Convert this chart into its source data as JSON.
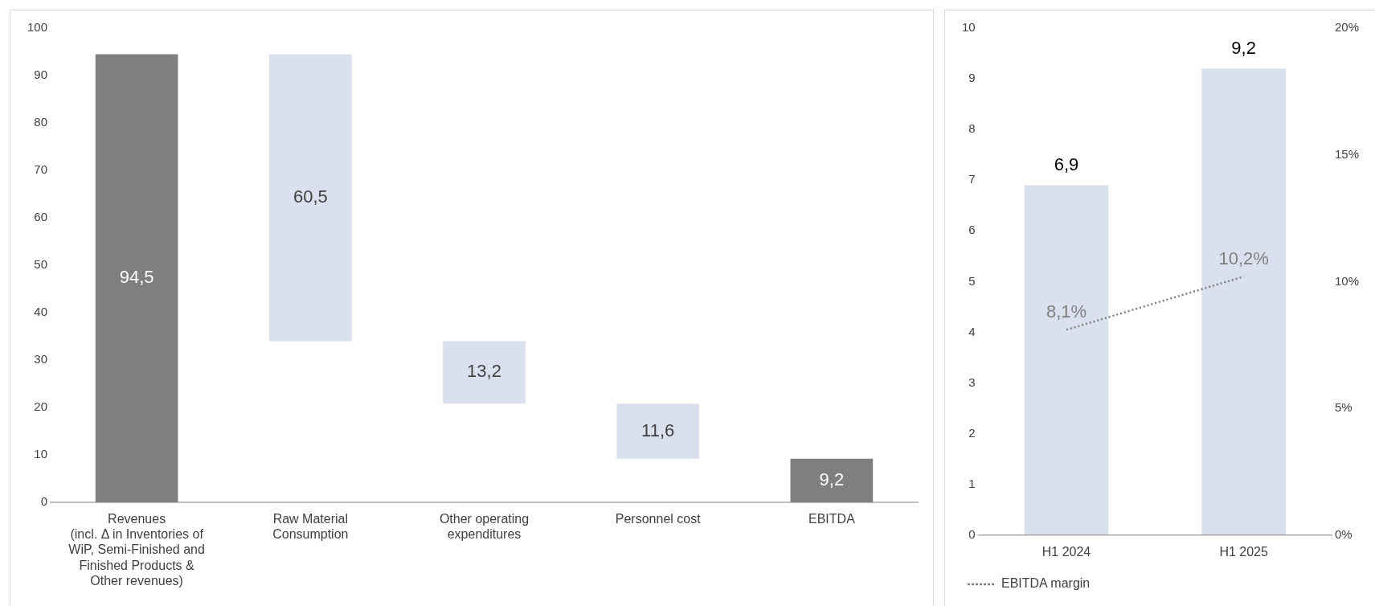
{
  "chart_data": [
    {
      "type": "bar",
      "categories": [
        "Revenues\n(incl. Δ in Inventories of\nWiP, Semi-Finished and\nFinished Products &\nOther revenues)",
        "Raw Material\nConsumption",
        "Other operating\nexpenditures",
        "Personnel cost",
        "EBITDA"
      ],
      "values": [
        94.5,
        60.5,
        13.2,
        11.6,
        9.2
      ],
      "base": [
        0,
        34,
        20.8,
        9.2,
        0
      ],
      "colors": [
        "#7f7f7f",
        "#dae0ee",
        "#dae0ee",
        "#dae0ee",
        "#7f7f7f"
      ],
      "value_labels": [
        "94,5",
        "60,5",
        "13,2",
        "11,6",
        "9,2"
      ],
      "ylim": [
        0,
        100
      ],
      "yticks": [
        0,
        10,
        20,
        30,
        40,
        50,
        60,
        70,
        80,
        90,
        100
      ],
      "grid": false,
      "legend": false
    },
    {
      "type": "bar",
      "categories": [
        "H1 2024",
        "H1 2025"
      ],
      "series": [
        {
          "color": "#dae0ee",
          "values": [
            6.9,
            9.2
          ],
          "value_labels": [
            "6,9",
            "9,2"
          ]
        },
        {
          "type": "line",
          "name": "EBITDA margin",
          "axis": "y2",
          "color": "#7f7f7f",
          "line_style": "dotted",
          "marker": "none",
          "values": [
            8.1,
            10.2
          ],
          "value_labels": [
            "8,1%",
            "10,2%"
          ]
        }
      ],
      "ylim": [
        0,
        10
      ],
      "yticks": [
        0,
        1,
        2,
        3,
        4,
        5,
        6,
        7,
        8,
        9,
        10
      ],
      "y2lim": [
        0,
        20
      ],
      "y2ticks": [
        {
          "value": 0,
          "label": "0%"
        },
        {
          "value": 5,
          "label": "5%"
        },
        {
          "value": 10,
          "label": "10%"
        },
        {
          "value": 15,
          "label": "15%"
        },
        {
          "value": 20,
          "label": "20%"
        }
      ],
      "grid": false,
      "legend": "bottom left"
    }
  ]
}
